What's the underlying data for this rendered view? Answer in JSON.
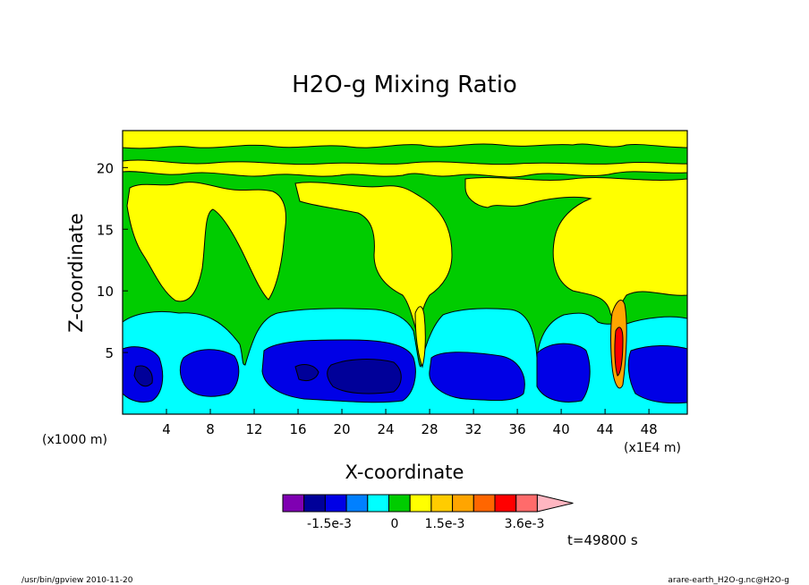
{
  "chart_data": {
    "type": "heatmap",
    "title": "H2O-g Mixing Ratio",
    "xlabel": "X-coordinate",
    "ylabel": "Z-coordinate",
    "x_scale_label": "(x1000 m)",
    "x_scale_label_right": "(x1E4 m)",
    "x_ticks": [
      "4",
      "8",
      "12",
      "16",
      "20",
      "24",
      "28",
      "32",
      "36",
      "40",
      "44",
      "48"
    ],
    "y_ticks": [
      "5",
      "10",
      "15",
      "20"
    ],
    "xlim": [
      0,
      51.5
    ],
    "ylim": [
      0,
      23
    ],
    "colorbar": {
      "colors": [
        "#7f00b2",
        "#000099",
        "#0000e6",
        "#0080ff",
        "#00ffff",
        "#00cc00",
        "#ffff00",
        "#ffcc00",
        "#ffa500",
        "#ff6600",
        "#ff0000",
        "#ff6b6b",
        "#ffb6c1"
      ],
      "labels": [
        "-1.5e-3",
        "0",
        "1.5e-3",
        "3.6e-3"
      ]
    },
    "levels": {
      "dark_blue": "#000099",
      "blue": "#0000e6",
      "cyan": "#00ffff",
      "green": "#00cc00",
      "yellow": "#ffff00",
      "orange": "#ffa500",
      "red": "#ff0000"
    },
    "time_label": "t=49800 s"
  },
  "footer": {
    "left": "/usr/bin/gpview   2010-11-20",
    "right": "arare-earth_H2O-g.nc@H2O-g"
  }
}
